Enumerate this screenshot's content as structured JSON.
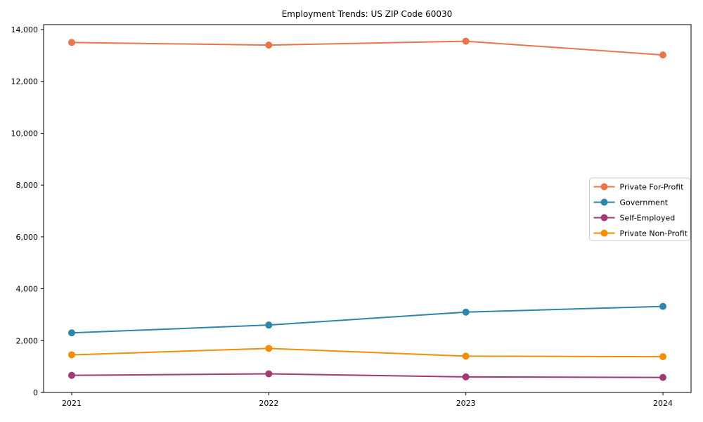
{
  "chart_data": {
    "type": "line",
    "title": "Employment Trends: US ZIP Code 60030",
    "xlabel": "",
    "ylabel": "",
    "x": [
      "2021",
      "2022",
      "2023",
      "2024"
    ],
    "series": [
      {
        "name": "Private For-Profit",
        "color": "#E8764B",
        "values": [
          13500,
          13400,
          13550,
          13020
        ]
      },
      {
        "name": "Government",
        "color": "#2E86AB",
        "values": [
          2300,
          2600,
          3100,
          3320
        ]
      },
      {
        "name": "Self-Employed",
        "color": "#A23B72",
        "values": [
          660,
          720,
          600,
          580
        ]
      },
      {
        "name": "Private Non-Profit",
        "color": "#F18F01",
        "values": [
          1450,
          1700,
          1400,
          1380
        ]
      }
    ],
    "ylim": [
      0,
      14190
    ],
    "yticks": [
      0,
      2000,
      4000,
      6000,
      8000,
      10000,
      12000,
      14000
    ],
    "ytick_labels": [
      "0",
      "2,000",
      "4,000",
      "6,000",
      "8,000",
      "10,000",
      "12,000",
      "14,000"
    ],
    "grid": false,
    "legend_position": "center-right",
    "axis_color": "#000000",
    "legend_border_color": "#cccccc",
    "background_color": "#ffffff",
    "marker": "circle",
    "marker_radius": 5,
    "line_width": 2
  }
}
